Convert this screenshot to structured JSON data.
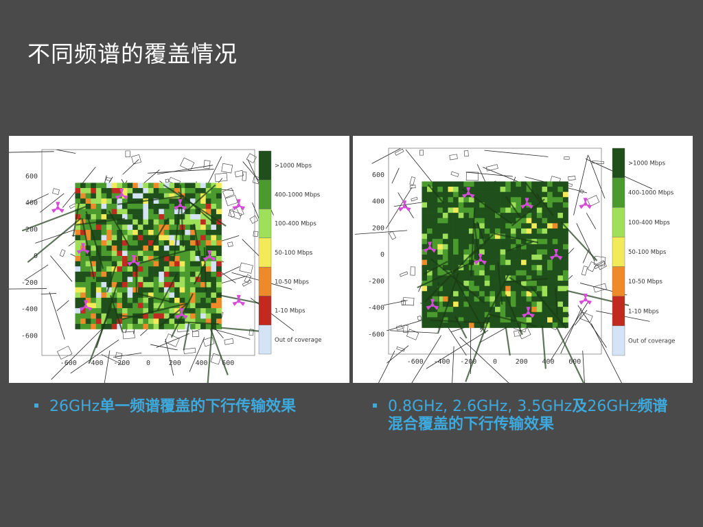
{
  "slide": {
    "title": "不同频谱的覆盖情况"
  },
  "captions": {
    "left": {
      "prefix": "26GHz",
      "bold": "单一频谱覆盖的下行传输效果"
    },
    "right": {
      "prefix": "0.8GHz, 2.6GHz, 3.5GHz",
      "bold1": "及",
      "mid": "26GHz",
      "bold2": "频谱",
      "line2": "混合覆盖的下行传输效果"
    }
  },
  "legend": [
    {
      "label": ">1000 Mbps",
      "color": "#1f4f1a"
    },
    {
      "label": "400-1000 Mbps",
      "color": "#4a9a2e"
    },
    {
      "label": "100-400 Mbps",
      "color": "#9ee05a"
    },
    {
      "label": "50-100 Mbps",
      "color": "#f2ea58"
    },
    {
      "label": "10-50 Mbps",
      "color": "#ee8a2a"
    },
    {
      "label": "1-10 Mbps",
      "color": "#c12a1e"
    },
    {
      "label": "Out of coverage",
      "color": "#d4e3f5"
    }
  ],
  "axes": {
    "x_ticks": [
      "-600",
      "-400",
      "-200",
      "0",
      "200",
      "400",
      "600"
    ],
    "y_ticks": [
      "600",
      "400",
      "200",
      "0",
      "-200",
      "-400",
      "-600"
    ]
  },
  "maps": {
    "left": {
      "weights": [
        0.33,
        0.27,
        0.14,
        0.07,
        0.07,
        0.06,
        0.06
      ],
      "seed": 11
    },
    "right": {
      "weights": [
        0.71,
        0.19,
        0.07,
        0.02,
        0.01,
        0.0,
        0.0
      ],
      "seed": 29
    }
  },
  "colors": {
    "background": "#4a4a4a",
    "caption": "#3ea9dd",
    "base_station": "#d64cd8"
  }
}
